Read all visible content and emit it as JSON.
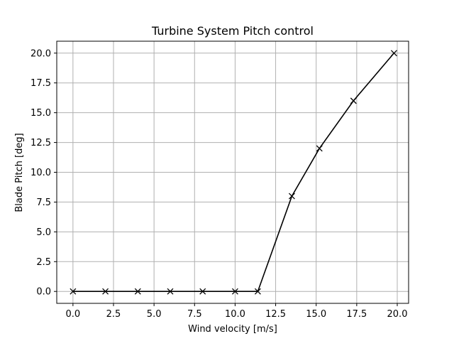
{
  "chart_data": {
    "type": "line",
    "title": "Turbine System Pitch control",
    "xlabel": "Wind velocity [m/s]",
    "ylabel": "Blade Pitch [deg]",
    "xlim": [
      -1.0,
      20.7
    ],
    "ylim": [
      -1.0,
      21.0
    ],
    "xticks": [
      0.0,
      2.5,
      5.0,
      7.5,
      10.0,
      12.5,
      15.0,
      17.5,
      20.0
    ],
    "xtick_labels": [
      "0.0",
      "2.5",
      "5.0",
      "7.5",
      "10.0",
      "12.5",
      "15.0",
      "17.5",
      "20.0"
    ],
    "yticks": [
      0.0,
      2.5,
      5.0,
      7.5,
      10.0,
      12.5,
      15.0,
      17.5,
      20.0
    ],
    "ytick_labels": [
      "0.0",
      "2.5",
      "5.0",
      "7.5",
      "10.0",
      "12.5",
      "15.0",
      "17.5",
      "20.0"
    ],
    "grid": true,
    "marker": "x",
    "line_color": "#000000",
    "grid_color": "#b0b0b0",
    "series": [
      {
        "x": [
          0.0,
          2.0,
          4.0,
          6.0,
          8.0,
          10.0,
          11.4,
          13.5,
          15.2,
          17.3,
          19.8
        ],
        "y": [
          0.0,
          0.0,
          0.0,
          0.0,
          0.0,
          0.0,
          0.0,
          8.0,
          12.0,
          16.0,
          20.0
        ]
      }
    ]
  }
}
